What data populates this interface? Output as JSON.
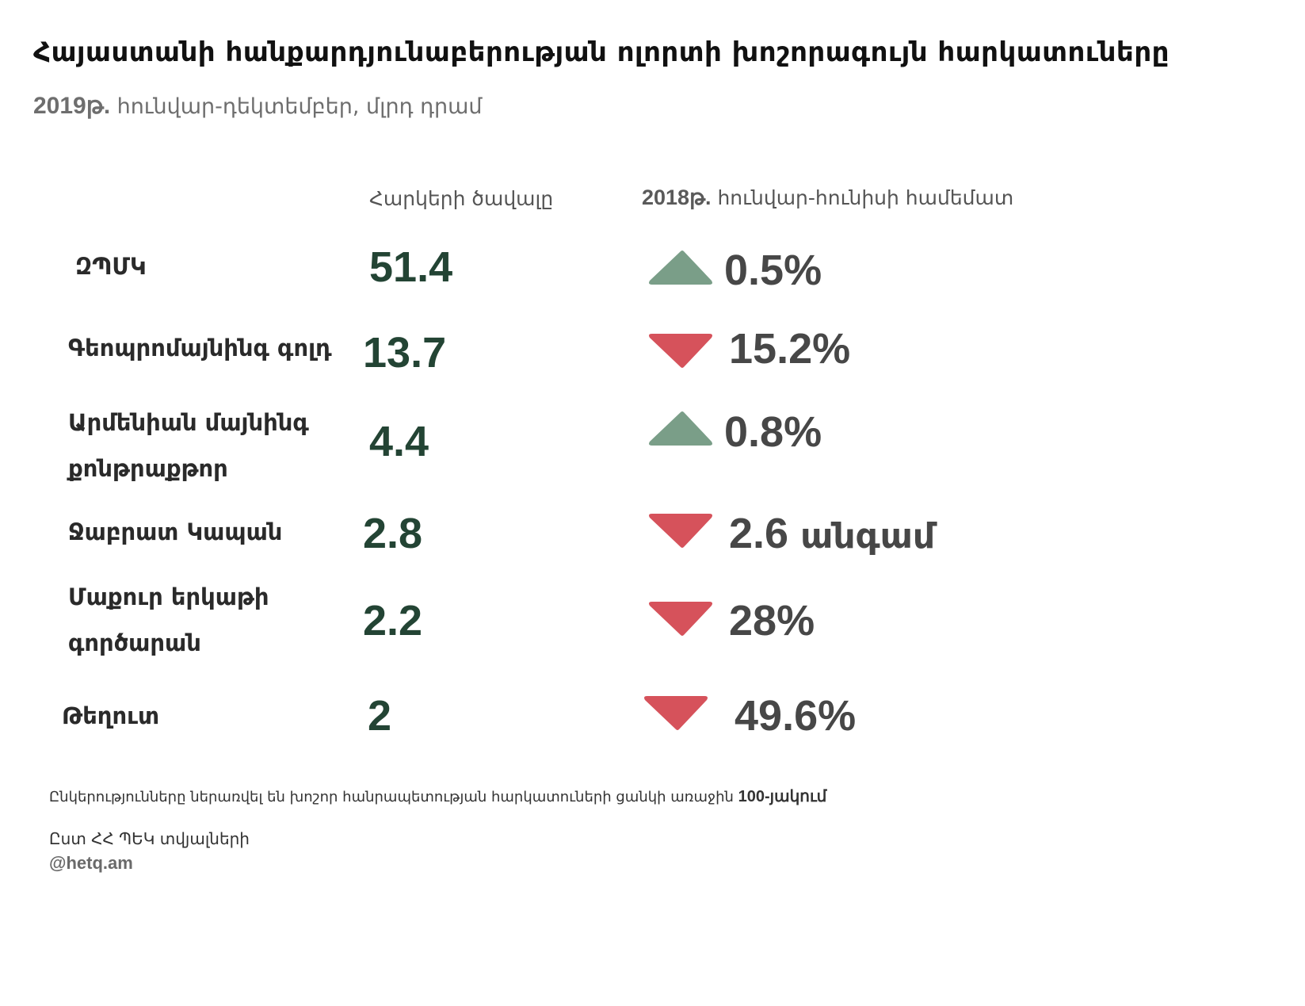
{
  "title": "Հայաստանի հանքարդյունաբերության ոլորտի խոշորագույն հարկատուները",
  "subtitle": {
    "year": "2019թ.",
    "period_units": "հունվար-դեկտեմբեր, մլրդ դրամ"
  },
  "columns": {
    "amount_header": "Հարկերի ծավալը",
    "change_header_year": "2018թ.",
    "change_header_text": "հունվար-հունիսի համեմատ"
  },
  "rows": [
    {
      "label": "ԶՊՄԿ",
      "value": "51.4",
      "change": "0.5%",
      "change_suffix": "",
      "direction": "up"
    },
    {
      "label": "Գեոպրոմայնինգ գոլդ",
      "value": "13.7",
      "change": "15.2%",
      "change_suffix": "",
      "direction": "down"
    },
    {
      "label": "Արմենիան մայնինգ քոնթրաքթոր",
      "value": "4.4",
      "change": "0.8%",
      "change_suffix": "",
      "direction": "up"
    },
    {
      "label": "Ջաբրատ Կապան",
      "value": "2.8",
      "change": "2.6",
      "change_suffix": "անգամ",
      "direction": "down"
    },
    {
      "label": "Մաքուր երկաթի գործարան",
      "value": "2.2",
      "change": "28%",
      "change_suffix": "",
      "direction": "down"
    },
    {
      "label": "Թեղուտ",
      "value": "2",
      "change": "49.6%",
      "change_suffix": "",
      "direction": "down"
    }
  ],
  "chart_data": {
    "type": "table",
    "title": "Հայաստանի հանքարդյունաբերության ոլորտի խոշորագույն հարկատուները",
    "subtitle": "2019թ. հունվար-դեկտեմբեր, մլրդ դրամ",
    "columns": [
      "Հարկերի ծավալը",
      "2018թ. հունվար-հունիսի համեմատ"
    ],
    "categories": [
      "ԶՊՄԿ",
      "Գեոպրոմայնինգ գոլդ",
      "Արմենիան մայնինգ քոնթրաքթոր",
      "Ջաբրատ Կապան",
      "Մաքուր երկաթի գործարան",
      "Թեղուտ"
    ],
    "values": [
      51.4,
      13.7,
      4.4,
      2.8,
      2.2,
      2
    ],
    "changes": [
      "0.5%",
      "15.2%",
      "0.8%",
      "2.6 անգամ",
      "28%",
      "49.6%"
    ],
    "directions": [
      "up",
      "down",
      "up",
      "down",
      "down",
      "down"
    ]
  },
  "colors": {
    "up": "#7a9e88",
    "down": "#d6525b",
    "value_text": "#234434",
    "change_text": "#474747"
  },
  "footnote": {
    "text": "Ընկերությունները ներառվել են խոշոր հանրապետության հարկատուների ցանկի առաջին",
    "number": "100-յակում"
  },
  "source": "Ըստ ՀՀ ՊԵԿ տվյալների",
  "handle": "@hetq.am"
}
